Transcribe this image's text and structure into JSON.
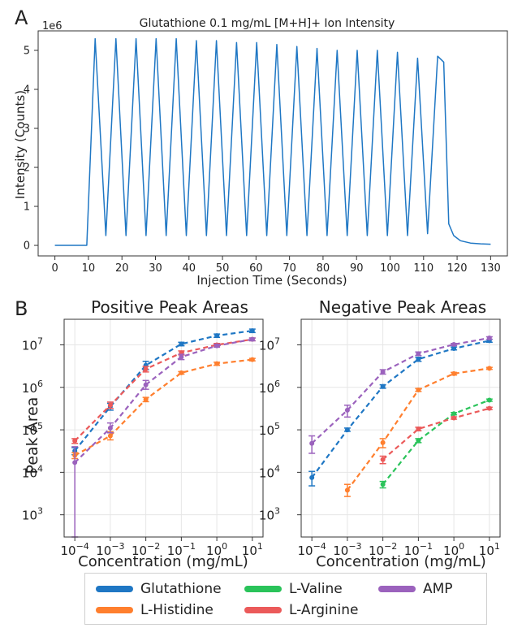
{
  "panel_labels": {
    "a": "A",
    "b": "B"
  },
  "colors": {
    "glutathione": "#1f77c4",
    "histidine": "#ff7f2e",
    "valine": "#2ac35a",
    "arginine": "#eb5a5a",
    "amp": "#9b62bd",
    "line_a": "#1f77c4",
    "grid": "#e6e6e6"
  },
  "legend": [
    {
      "key": "glutathione",
      "label": "Glutathione"
    },
    {
      "key": "valine",
      "label": "L-Valine"
    },
    {
      "key": "amp",
      "label": "AMP"
    },
    {
      "key": "histidine",
      "label": "L-Histidine"
    },
    {
      "key": "arginine",
      "label": "L-Arginine"
    }
  ],
  "chart_data": [
    {
      "type": "line",
      "title": "Glutathione 0.1 mg/mL [M+H]+ Ion Intensity",
      "xlabel": "Injection Time (Seconds)",
      "ylabel": "Intensity (Counts)",
      "y_multiplier_label": "1e6",
      "xlim": [
        -5,
        135
      ],
      "ylim": [
        -0.27,
        5.5
      ],
      "xticks": [
        0,
        10,
        20,
        30,
        40,
        50,
        60,
        70,
        80,
        90,
        100,
        110,
        120,
        130
      ],
      "yticks": [
        0,
        1,
        2,
        3,
        4,
        5
      ],
      "grid": false,
      "series": [
        {
          "peaks": [
            [
              12,
              5.3
            ],
            [
              18.2,
              5.3
            ],
            [
              24.2,
              5.3
            ],
            [
              30.2,
              5.3
            ],
            [
              36.2,
              5.3
            ],
            [
              42.2,
              5.25
            ],
            [
              48.2,
              5.25
            ],
            [
              54.2,
              5.2
            ],
            [
              60.2,
              5.2
            ],
            [
              66.2,
              5.15
            ],
            [
              72.2,
              5.1
            ],
            [
              78.2,
              5.05
            ],
            [
              84.2,
              5.0
            ],
            [
              90.2,
              5.0
            ],
            [
              96.2,
              5.0
            ],
            [
              102.2,
              4.95
            ],
            [
              108.2,
              4.8
            ],
            [
              114.2,
              4.85
            ]
          ],
          "valleys": [
            [
              15.2,
              0.25
            ],
            [
              21.2,
              0.25
            ],
            [
              27.2,
              0.25
            ],
            [
              33.2,
              0.25
            ],
            [
              39.2,
              0.25
            ],
            [
              45.2,
              0.25
            ],
            [
              51.2,
              0.25
            ],
            [
              57.2,
              0.25
            ],
            [
              63.2,
              0.25
            ],
            [
              69.2,
              0.25
            ],
            [
              75.2,
              0.25
            ],
            [
              81.2,
              0.25
            ],
            [
              87.2,
              0.25
            ],
            [
              93.2,
              0.25
            ],
            [
              99.2,
              0.25
            ],
            [
              105.2,
              0.25
            ],
            [
              111.2,
              0.3
            ]
          ],
          "lead_in": [
            [
              0,
              0
            ],
            [
              9.5,
              0
            ]
          ],
          "tail": [
            [
              116,
              4.7
            ],
            [
              117.5,
              0.55
            ],
            [
              119,
              0.25
            ],
            [
              121,
              0.12
            ],
            [
              124,
              0.06
            ],
            [
              127,
              0.04
            ],
            [
              130,
              0.03
            ]
          ]
        }
      ]
    },
    {
      "type": "line",
      "title": "Positive Peak Areas",
      "xlabel": "Concentration (mg/mL)",
      "ylabel": "Peak Area",
      "xscale": "log",
      "yscale": "log",
      "xlim": [
        5e-05,
        20
      ],
      "ylim": [
        300,
        40000000
      ],
      "xtick_values": [
        0.0001,
        0.001,
        0.01,
        0.1,
        1,
        10
      ],
      "xtick_exps": [
        "−4",
        "−3",
        "−2",
        "−1",
        "0",
        "1"
      ],
      "ytick_values": [
        1000,
        10000,
        100000,
        1000000,
        10000000
      ],
      "ytick_exps": [
        "3",
        "4",
        "5",
        "6",
        "7"
      ],
      "grid": true,
      "series": [
        {
          "name": "Glutathione",
          "key": "glutathione",
          "x": [
            0.0001,
            0.001,
            0.01,
            0.1,
            1,
            10
          ],
          "y": [
            32000,
            350000,
            3300000,
            10500000,
            16500000,
            21500000
          ],
          "err_lo": [
            26000,
            290000,
            2600000,
            9500000,
            15000000,
            19500000
          ],
          "err_hi": [
            38000,
            420000,
            4100000,
            11500000,
            18000000,
            23500000
          ]
        },
        {
          "name": "L-Histidine",
          "key": "histidine",
          "x": [
            0.0001,
            0.001,
            0.01,
            0.1,
            1,
            10
          ],
          "y": [
            25000,
            72000,
            520000,
            2200000,
            3600000,
            4500000
          ],
          "err_lo": [
            21000,
            58000,
            460000,
            2050000,
            3300000,
            4200000
          ],
          "err_hi": [
            29000,
            90000,
            580000,
            2350000,
            3900000,
            4800000
          ]
        },
        {
          "name": "L-Arginine",
          "key": "arginine",
          "x": [
            0.0001,
            0.001,
            0.01,
            0.1,
            1,
            10
          ],
          "y": [
            55000,
            380000,
            2700000,
            6500000,
            10000000,
            13500000
          ],
          "err_lo": [
            48000,
            320000,
            2300000,
            5800000,
            9300000,
            12500000
          ],
          "err_hi": [
            62000,
            450000,
            3100000,
            7200000,
            10800000,
            14500000
          ]
        },
        {
          "name": "AMP",
          "key": "amp",
          "x": [
            0.0001,
            0.001,
            0.01,
            0.1,
            1,
            10
          ],
          "y": [
            17000,
            110000,
            1150000,
            5200000,
            9500000,
            13500000
          ],
          "err_lo": [
            300,
            85000,
            900000,
            4500000,
            8800000,
            12500000
          ],
          "err_hi": [
            40000,
            145000,
            1450000,
            6000000,
            10300000,
            14500000
          ]
        }
      ]
    },
    {
      "type": "line",
      "title": "Negative Peak Areas",
      "xlabel": "Concentration (mg/mL)",
      "ylabel": "",
      "xscale": "log",
      "yscale": "log",
      "xlim": [
        5e-05,
        20
      ],
      "ylim": [
        300,
        40000000
      ],
      "xtick_values": [
        0.0001,
        0.001,
        0.01,
        0.1,
        1,
        10
      ],
      "xtick_exps": [
        "−4",
        "−3",
        "−2",
        "−1",
        "0",
        "1"
      ],
      "ytick_values": [
        1000,
        10000,
        100000,
        1000000,
        10000000
      ],
      "ytick_exps": [
        "3",
        "4",
        "5",
        "6",
        "7"
      ],
      "grid": true,
      "series": [
        {
          "name": "Glutathione",
          "key": "glutathione",
          "x": [
            0.0001,
            0.001,
            0.01,
            0.1,
            1,
            10
          ],
          "y": [
            7500,
            100000,
            1050000,
            4600000,
            8200000,
            12500000
          ],
          "err_lo": [
            4800,
            92000,
            950000,
            4100000,
            7600000,
            11500000
          ],
          "err_hi": [
            10500,
            110000,
            1150000,
            5100000,
            8900000,
            13500000
          ]
        },
        {
          "name": "L-Histidine",
          "key": "histidine",
          "x": [
            0.001,
            0.01,
            0.1,
            1,
            10
          ],
          "y": [
            3800,
            50000,
            870000,
            2100000,
            2800000
          ],
          "err_lo": [
            2700,
            38000,
            800000,
            1950000,
            2650000
          ],
          "err_hi": [
            5200,
            62000,
            940000,
            2250000,
            2950000
          ]
        },
        {
          "name": "L-Valine",
          "key": "valine",
          "x": [
            0.01,
            0.1,
            1,
            10
          ],
          "y": [
            5200,
            56000,
            240000,
            500000
          ],
          "err_lo": [
            4300,
            50000,
            225000,
            470000
          ],
          "err_hi": [
            6100,
            62000,
            255000,
            530000
          ]
        },
        {
          "name": "L-Arginine",
          "key": "arginine",
          "x": [
            0.01,
            0.1,
            1,
            10
          ],
          "y": [
            20000,
            105000,
            190000,
            320000
          ],
          "err_lo": [
            16000,
            95000,
            178000,
            300000
          ],
          "err_hi": [
            24000,
            115000,
            202000,
            340000
          ]
        },
        {
          "name": "AMP",
          "key": "amp",
          "x": [
            0.0001,
            0.001,
            0.01,
            0.1,
            1,
            10
          ],
          "y": [
            48000,
            290000,
            2300000,
            6200000,
            10200000,
            14500000
          ],
          "err_lo": [
            28000,
            200000,
            2050000,
            5600000,
            9600000,
            13500000
          ],
          "err_hi": [
            72000,
            380000,
            2600000,
            6800000,
            10800000,
            15500000
          ]
        }
      ]
    }
  ]
}
